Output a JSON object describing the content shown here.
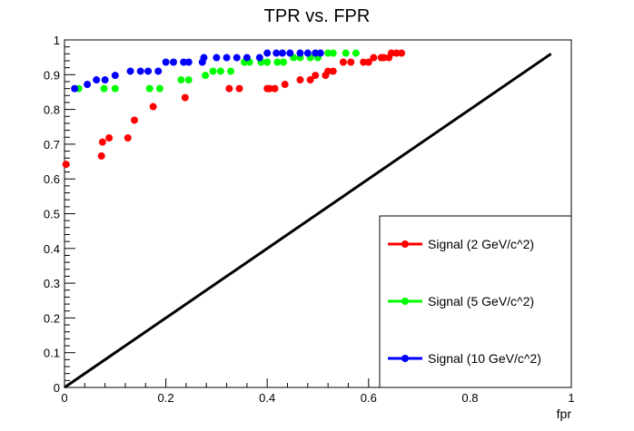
{
  "chart_data": {
    "type": "scatter",
    "title": "TPR vs. FPR",
    "xlabel": "fpr",
    "ylabel": "",
    "xlim": [
      0,
      1
    ],
    "ylim": [
      0,
      1
    ],
    "x_ticks": [
      "0",
      "0.2",
      "0.4",
      "0.6",
      "0.8",
      "1"
    ],
    "y_ticks": [
      "0",
      "0.1",
      "0.2",
      "0.3",
      "0.4",
      "0.5",
      "0.6",
      "0.7",
      "0.8",
      "0.9",
      "1"
    ],
    "grid": false,
    "legend_position": "bottom-right",
    "diagonal": {
      "color": "#000000",
      "x": [
        0.0,
        0.96
      ],
      "y": [
        0.0,
        0.96
      ]
    },
    "series": [
      {
        "name": "Signal (2 GeV/c^2)",
        "color": "#ff0000",
        "x": [
          0.003,
          0.073,
          0.075,
          0.088,
          0.125,
          0.138,
          0.175,
          0.238,
          0.325,
          0.345,
          0.4,
          0.405,
          0.415,
          0.435,
          0.465,
          0.485,
          0.495,
          0.515,
          0.52,
          0.53,
          0.55,
          0.565,
          0.59,
          0.6,
          0.61,
          0.625,
          0.63,
          0.64,
          0.645,
          0.655,
          0.665
        ],
        "y": [
          0.642,
          0.666,
          0.706,
          0.718,
          0.718,
          0.769,
          0.808,
          0.834,
          0.86,
          0.86,
          0.86,
          0.86,
          0.86,
          0.872,
          0.885,
          0.885,
          0.898,
          0.898,
          0.91,
          0.91,
          0.936,
          0.936,
          0.936,
          0.936,
          0.949,
          0.949,
          0.949,
          0.949,
          0.962,
          0.962,
          0.962
        ]
      },
      {
        "name": "Signal (5 GeV/c^2)",
        "color": "#00ff00",
        "x": [
          0.028,
          0.078,
          0.1,
          0.168,
          0.188,
          0.23,
          0.245,
          0.278,
          0.293,
          0.308,
          0.328,
          0.355,
          0.365,
          0.388,
          0.4,
          0.42,
          0.432,
          0.452,
          0.465,
          0.485,
          0.5,
          0.52,
          0.53,
          0.555,
          0.575
        ],
        "y": [
          0.86,
          0.86,
          0.86,
          0.86,
          0.86,
          0.885,
          0.885,
          0.898,
          0.91,
          0.91,
          0.91,
          0.936,
          0.936,
          0.936,
          0.936,
          0.936,
          0.936,
          0.949,
          0.949,
          0.949,
          0.949,
          0.962,
          0.962,
          0.962,
          0.962
        ]
      },
      {
        "name": "Signal (10 GeV/c^2)",
        "color": "#0000ff",
        "x": [
          0.02,
          0.045,
          0.063,
          0.08,
          0.1,
          0.13,
          0.15,
          0.165,
          0.185,
          0.2,
          0.215,
          0.235,
          0.245,
          0.272,
          0.275,
          0.3,
          0.32,
          0.34,
          0.36,
          0.385,
          0.4,
          0.418,
          0.43,
          0.445,
          0.465,
          0.48,
          0.495,
          0.505
        ],
        "y": [
          0.86,
          0.872,
          0.885,
          0.885,
          0.898,
          0.91,
          0.91,
          0.91,
          0.91,
          0.936,
          0.936,
          0.936,
          0.936,
          0.936,
          0.949,
          0.949,
          0.949,
          0.949,
          0.949,
          0.949,
          0.962,
          0.962,
          0.962,
          0.962,
          0.962,
          0.962,
          0.962,
          0.962
        ]
      }
    ]
  }
}
